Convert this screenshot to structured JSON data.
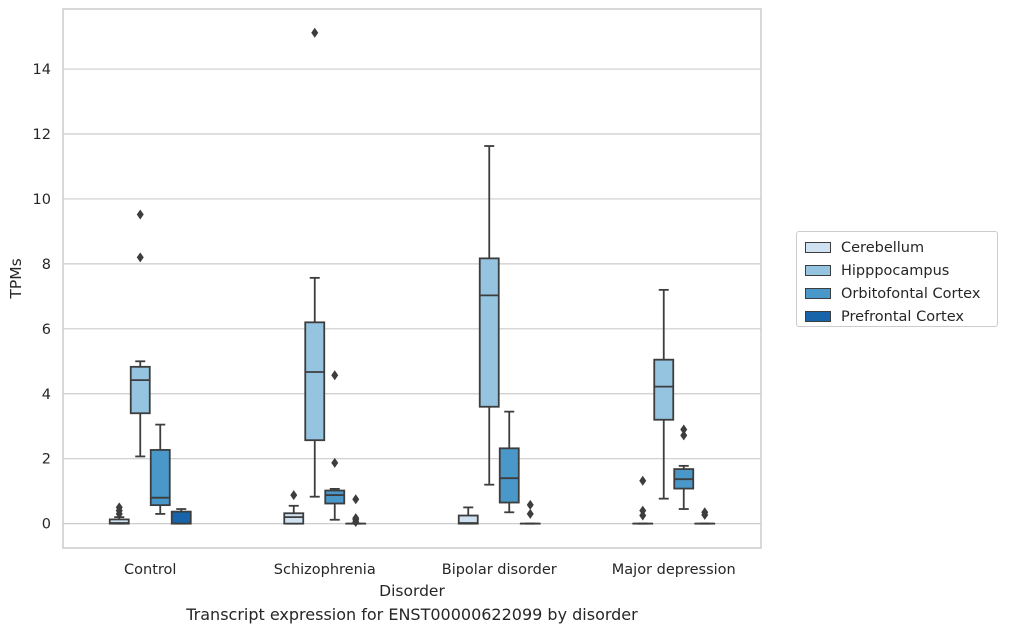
{
  "caption": "Transcript expression for ENST00000622099 by disorder",
  "legend": {
    "items": [
      {
        "label": "Cerebellum",
        "color": "#d0e1f2"
      },
      {
        "label": "Hipppocampus",
        "color": "#94c4df"
      },
      {
        "label": "Orbitofontal Cortex",
        "color": "#4a98c9"
      },
      {
        "label": "Prefrontal Cortex",
        "color": "#1764ab"
      }
    ]
  },
  "chart_data": {
    "type": "box",
    "xlabel": "Disorder",
    "ylabel": "TPMs",
    "categories": [
      "Control",
      "Schizophrenia",
      "Bipolar disorder",
      "Major depression"
    ],
    "ylim": [
      -0.75,
      15.85
    ],
    "yticks": [
      0,
      2,
      4,
      6,
      8,
      10,
      12,
      14
    ],
    "grid": "horizontal",
    "legend_position": "right",
    "series": [
      {
        "name": "Cerebellum",
        "color": "#d0e1f2",
        "boxes": [
          {
            "q1": 0.0,
            "median": 0.02,
            "q3": 0.13,
            "whislo": 0.0,
            "whishi": 0.2,
            "fliers": [
              0.3,
              0.4,
              0.5
            ]
          },
          {
            "q1": 0.0,
            "median": 0.2,
            "q3": 0.32,
            "whislo": 0.0,
            "whishi": 0.55,
            "fliers": [
              0.88
            ]
          },
          {
            "q1": 0.0,
            "median": 0.02,
            "q3": 0.25,
            "whislo": 0.0,
            "whishi": 0.5,
            "fliers": []
          },
          {
            "q1": 0.0,
            "median": 0.0,
            "q3": 0.0,
            "whislo": 0.0,
            "whishi": 0.0,
            "fliers": [
              0.25,
              0.4,
              1.32
            ]
          }
        ]
      },
      {
        "name": "Hipppocampus",
        "color": "#94c4df",
        "boxes": [
          {
            "q1": 3.4,
            "median": 4.42,
            "q3": 4.83,
            "whislo": 2.07,
            "whishi": 5.0,
            "fliers": [
              8.2,
              9.52
            ]
          },
          {
            "q1": 2.57,
            "median": 4.67,
            "q3": 6.2,
            "whislo": 0.83,
            "whishi": 7.57,
            "fliers": [
              15.12
            ]
          },
          {
            "q1": 3.6,
            "median": 7.03,
            "q3": 8.17,
            "whislo": 1.2,
            "whishi": 11.63,
            "fliers": []
          },
          {
            "q1": 3.2,
            "median": 4.22,
            "q3": 5.05,
            "whislo": 0.77,
            "whishi": 7.2,
            "fliers": []
          }
        ]
      },
      {
        "name": "Orbitofontal Cortex",
        "color": "#4a98c9",
        "boxes": [
          {
            "q1": 0.57,
            "median": 0.8,
            "q3": 2.27,
            "whislo": 0.3,
            "whishi": 3.05,
            "fliers": []
          },
          {
            "q1": 0.62,
            "median": 0.88,
            "q3": 1.02,
            "whislo": 0.12,
            "whishi": 1.07,
            "fliers": [
              1.87,
              4.57
            ]
          },
          {
            "q1": 0.65,
            "median": 1.4,
            "q3": 2.32,
            "whislo": 0.35,
            "whishi": 3.45,
            "fliers": []
          },
          {
            "q1": 1.08,
            "median": 1.37,
            "q3": 1.68,
            "whislo": 0.45,
            "whishi": 1.78,
            "fliers": [
              2.72,
              2.9
            ]
          }
        ]
      },
      {
        "name": "Prefrontal Cortex",
        "color": "#1764ab",
        "boxes": [
          {
            "q1": 0.0,
            "median": 0.0,
            "q3": 0.37,
            "whislo": 0.0,
            "whishi": 0.45,
            "fliers": []
          },
          {
            "q1": 0.0,
            "median": 0.0,
            "q3": 0.0,
            "whislo": 0.0,
            "whishi": 0.0,
            "fliers": [
              0.05,
              0.12,
              0.17,
              0.75
            ]
          },
          {
            "q1": 0.0,
            "median": 0.0,
            "q3": 0.0,
            "whislo": 0.0,
            "whishi": 0.0,
            "fliers": [
              0.3,
              0.58
            ]
          },
          {
            "q1": 0.0,
            "median": 0.0,
            "q3": 0.0,
            "whislo": 0.0,
            "whishi": 0.0,
            "fliers": [
              0.27,
              0.35
            ]
          }
        ]
      }
    ]
  }
}
